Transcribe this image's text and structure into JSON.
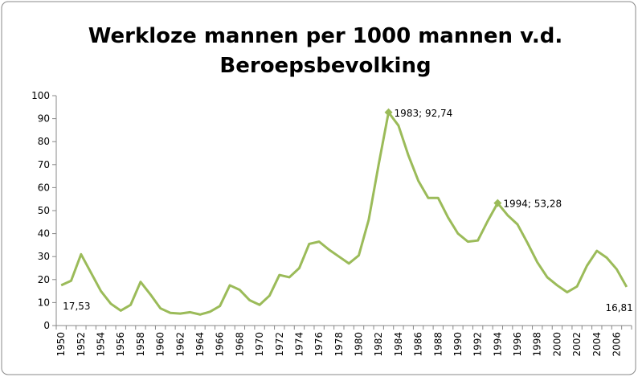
{
  "chart_data": {
    "type": "line",
    "title": [
      "Werkloze mannen per 1000 mannen v.d.",
      "Beroepsbevolking"
    ],
    "categories": [
      "1950",
      null,
      "1952",
      null,
      "1954",
      null,
      "1956",
      null,
      "1958",
      null,
      "1960",
      null,
      "1962",
      null,
      "1964",
      null,
      "1966",
      null,
      "1968",
      null,
      "1970",
      null,
      "1972",
      null,
      "1974",
      null,
      "1976",
      null,
      "1978",
      null,
      "1980",
      null,
      "1982",
      null,
      "1984",
      null,
      "1986",
      null,
      "1988",
      null,
      "1990",
      null,
      "1992",
      null,
      "1994",
      null,
      "1996",
      null,
      "1998",
      null,
      "2000",
      null,
      "2002",
      null,
      "2004",
      null,
      "2006",
      null
    ],
    "values": [
      17.53,
      19.5,
      31,
      23,
      15,
      9.5,
      6.5,
      9,
      19,
      13.5,
      7.5,
      5.5,
      5.2,
      5.8,
      4.8,
      6,
      8.5,
      17.5,
      15.5,
      11,
      9,
      13,
      22,
      21,
      25,
      35.5,
      36.5,
      33,
      30,
      27,
      30.5,
      46,
      70,
      92.74,
      87,
      74,
      63,
      55.5,
      55.5,
      47,
      40,
      36.5,
      37,
      45.5,
      53.28,
      48,
      44,
      36,
      27.5,
      21,
      17.5,
      14.5,
      17,
      26,
      32.5,
      29.5,
      24.5,
      16.81
    ],
    "value_labels": [
      "17,53",
      null,
      null,
      null,
      null,
      null,
      null,
      null,
      null,
      null,
      null,
      null,
      null,
      null,
      null,
      null,
      null,
      null,
      null,
      null,
      null,
      null,
      null,
      null,
      null,
      null,
      null,
      null,
      null,
      null,
      null,
      null,
      null,
      "1983; 92,74",
      null,
      null,
      null,
      null,
      null,
      null,
      null,
      null,
      null,
      null,
      "1994; 53,28",
      null,
      null,
      null,
      null,
      null,
      null,
      null,
      null,
      null,
      null,
      null,
      null,
      "16,81"
    ],
    "color": "#9bbb59",
    "ylim": [
      0,
      100
    ],
    "yticks": [
      0,
      10,
      20,
      30,
      40,
      50,
      60,
      70,
      80,
      90,
      100
    ],
    "grid": false
  }
}
